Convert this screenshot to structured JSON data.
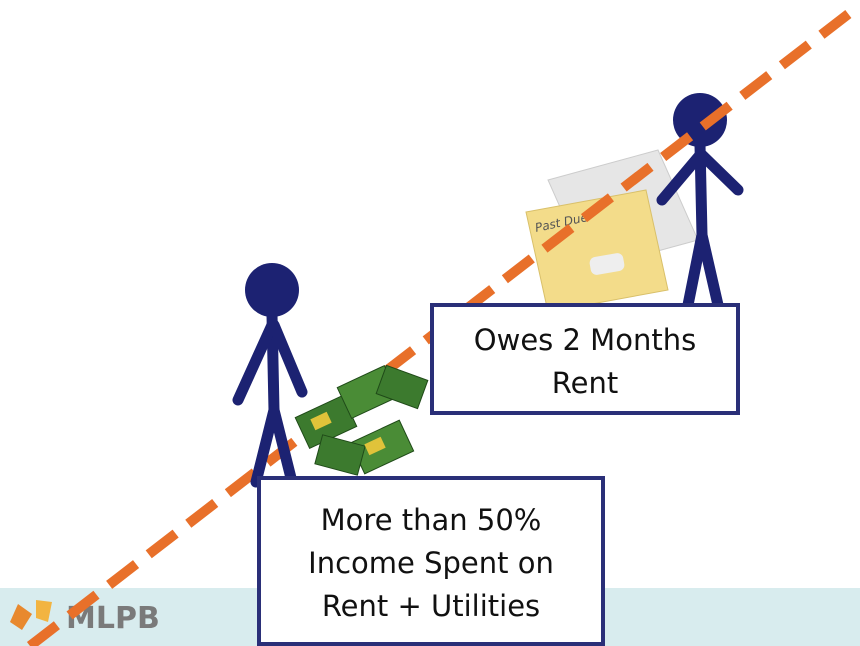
{
  "logo": "MLPB",
  "envelope_label": "Past Due",
  "boxes": [
    {
      "lines": [
        "Owes 2 Months",
        "Rent"
      ]
    },
    {
      "lines": [
        "More than 50%",
        "Income Spent on",
        "Rent + Utilities"
      ]
    }
  ]
}
